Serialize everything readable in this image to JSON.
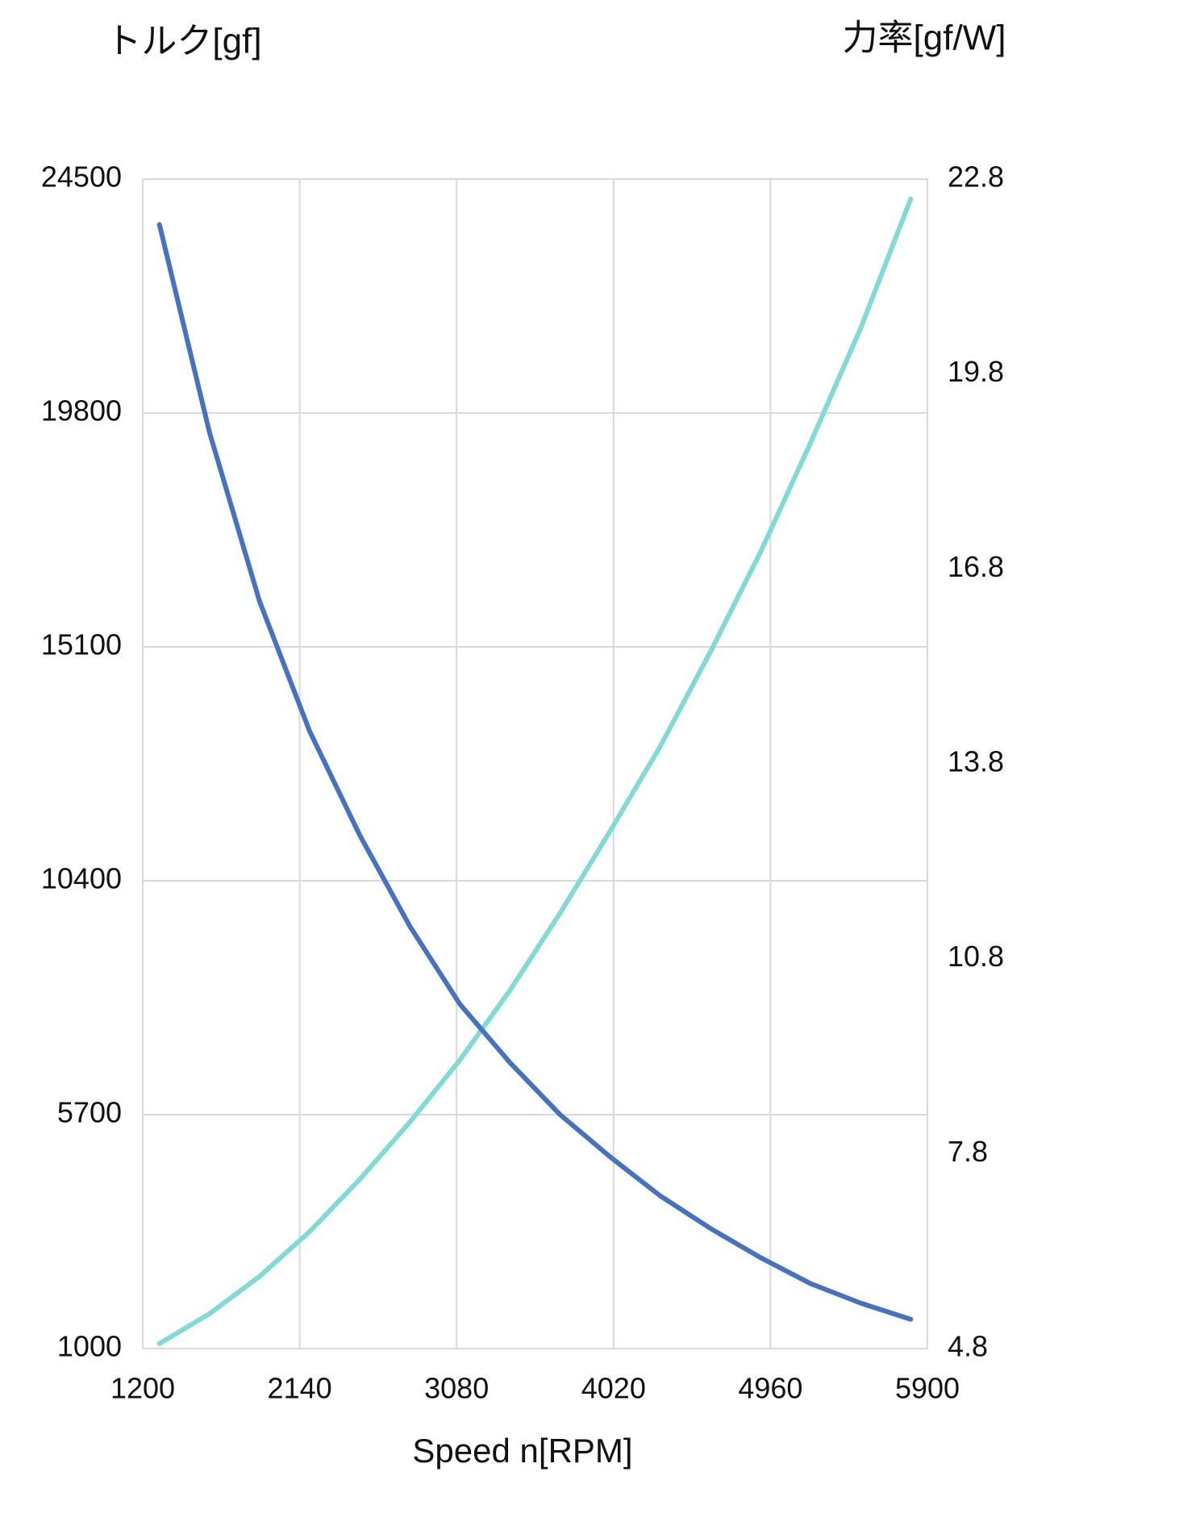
{
  "chart_data": {
    "type": "line",
    "title_left": "トルク[gf]",
    "title_right": "力率[gf/W]",
    "x_label": "Speed n[RPM]",
    "x": [
      1300,
      1600,
      1900,
      2200,
      2500,
      2800,
      3100,
      3400,
      3700,
      4000,
      4300,
      4600,
      4900,
      5200,
      5500,
      5800
    ],
    "series": [
      {
        "name": "トルク[gf]",
        "color": "#7edcd4",
        "axis": "y",
        "values": [
          1100,
          1700,
          2450,
          3350,
          4400,
          5550,
          6800,
          8200,
          9750,
          11400,
          13100,
          15000,
          17000,
          19200,
          21500,
          24100
        ]
      },
      {
        "name": "力率[gf/W]",
        "color": "#4472c4",
        "axis": "y2",
        "values": [
          22.1,
          18.9,
          16.3,
          14.3,
          12.7,
          11.3,
          10.1,
          9.2,
          8.4,
          7.75,
          7.15,
          6.65,
          6.2,
          5.8,
          5.5,
          5.25
        ]
      }
    ],
    "xlim": [
      1200,
      5900
    ],
    "xticks": [
      1200,
      2140,
      3080,
      4020,
      4960,
      5900
    ],
    "ylim": [
      1000,
      24500
    ],
    "yticks": [
      1000,
      5700,
      10400,
      15100,
      19800,
      24500
    ],
    "y2lim": [
      4.8,
      22.8
    ],
    "y2ticks": [
      4.8,
      7.8,
      10.8,
      13.8,
      16.8,
      19.8,
      22.8
    ],
    "grid": true
  }
}
